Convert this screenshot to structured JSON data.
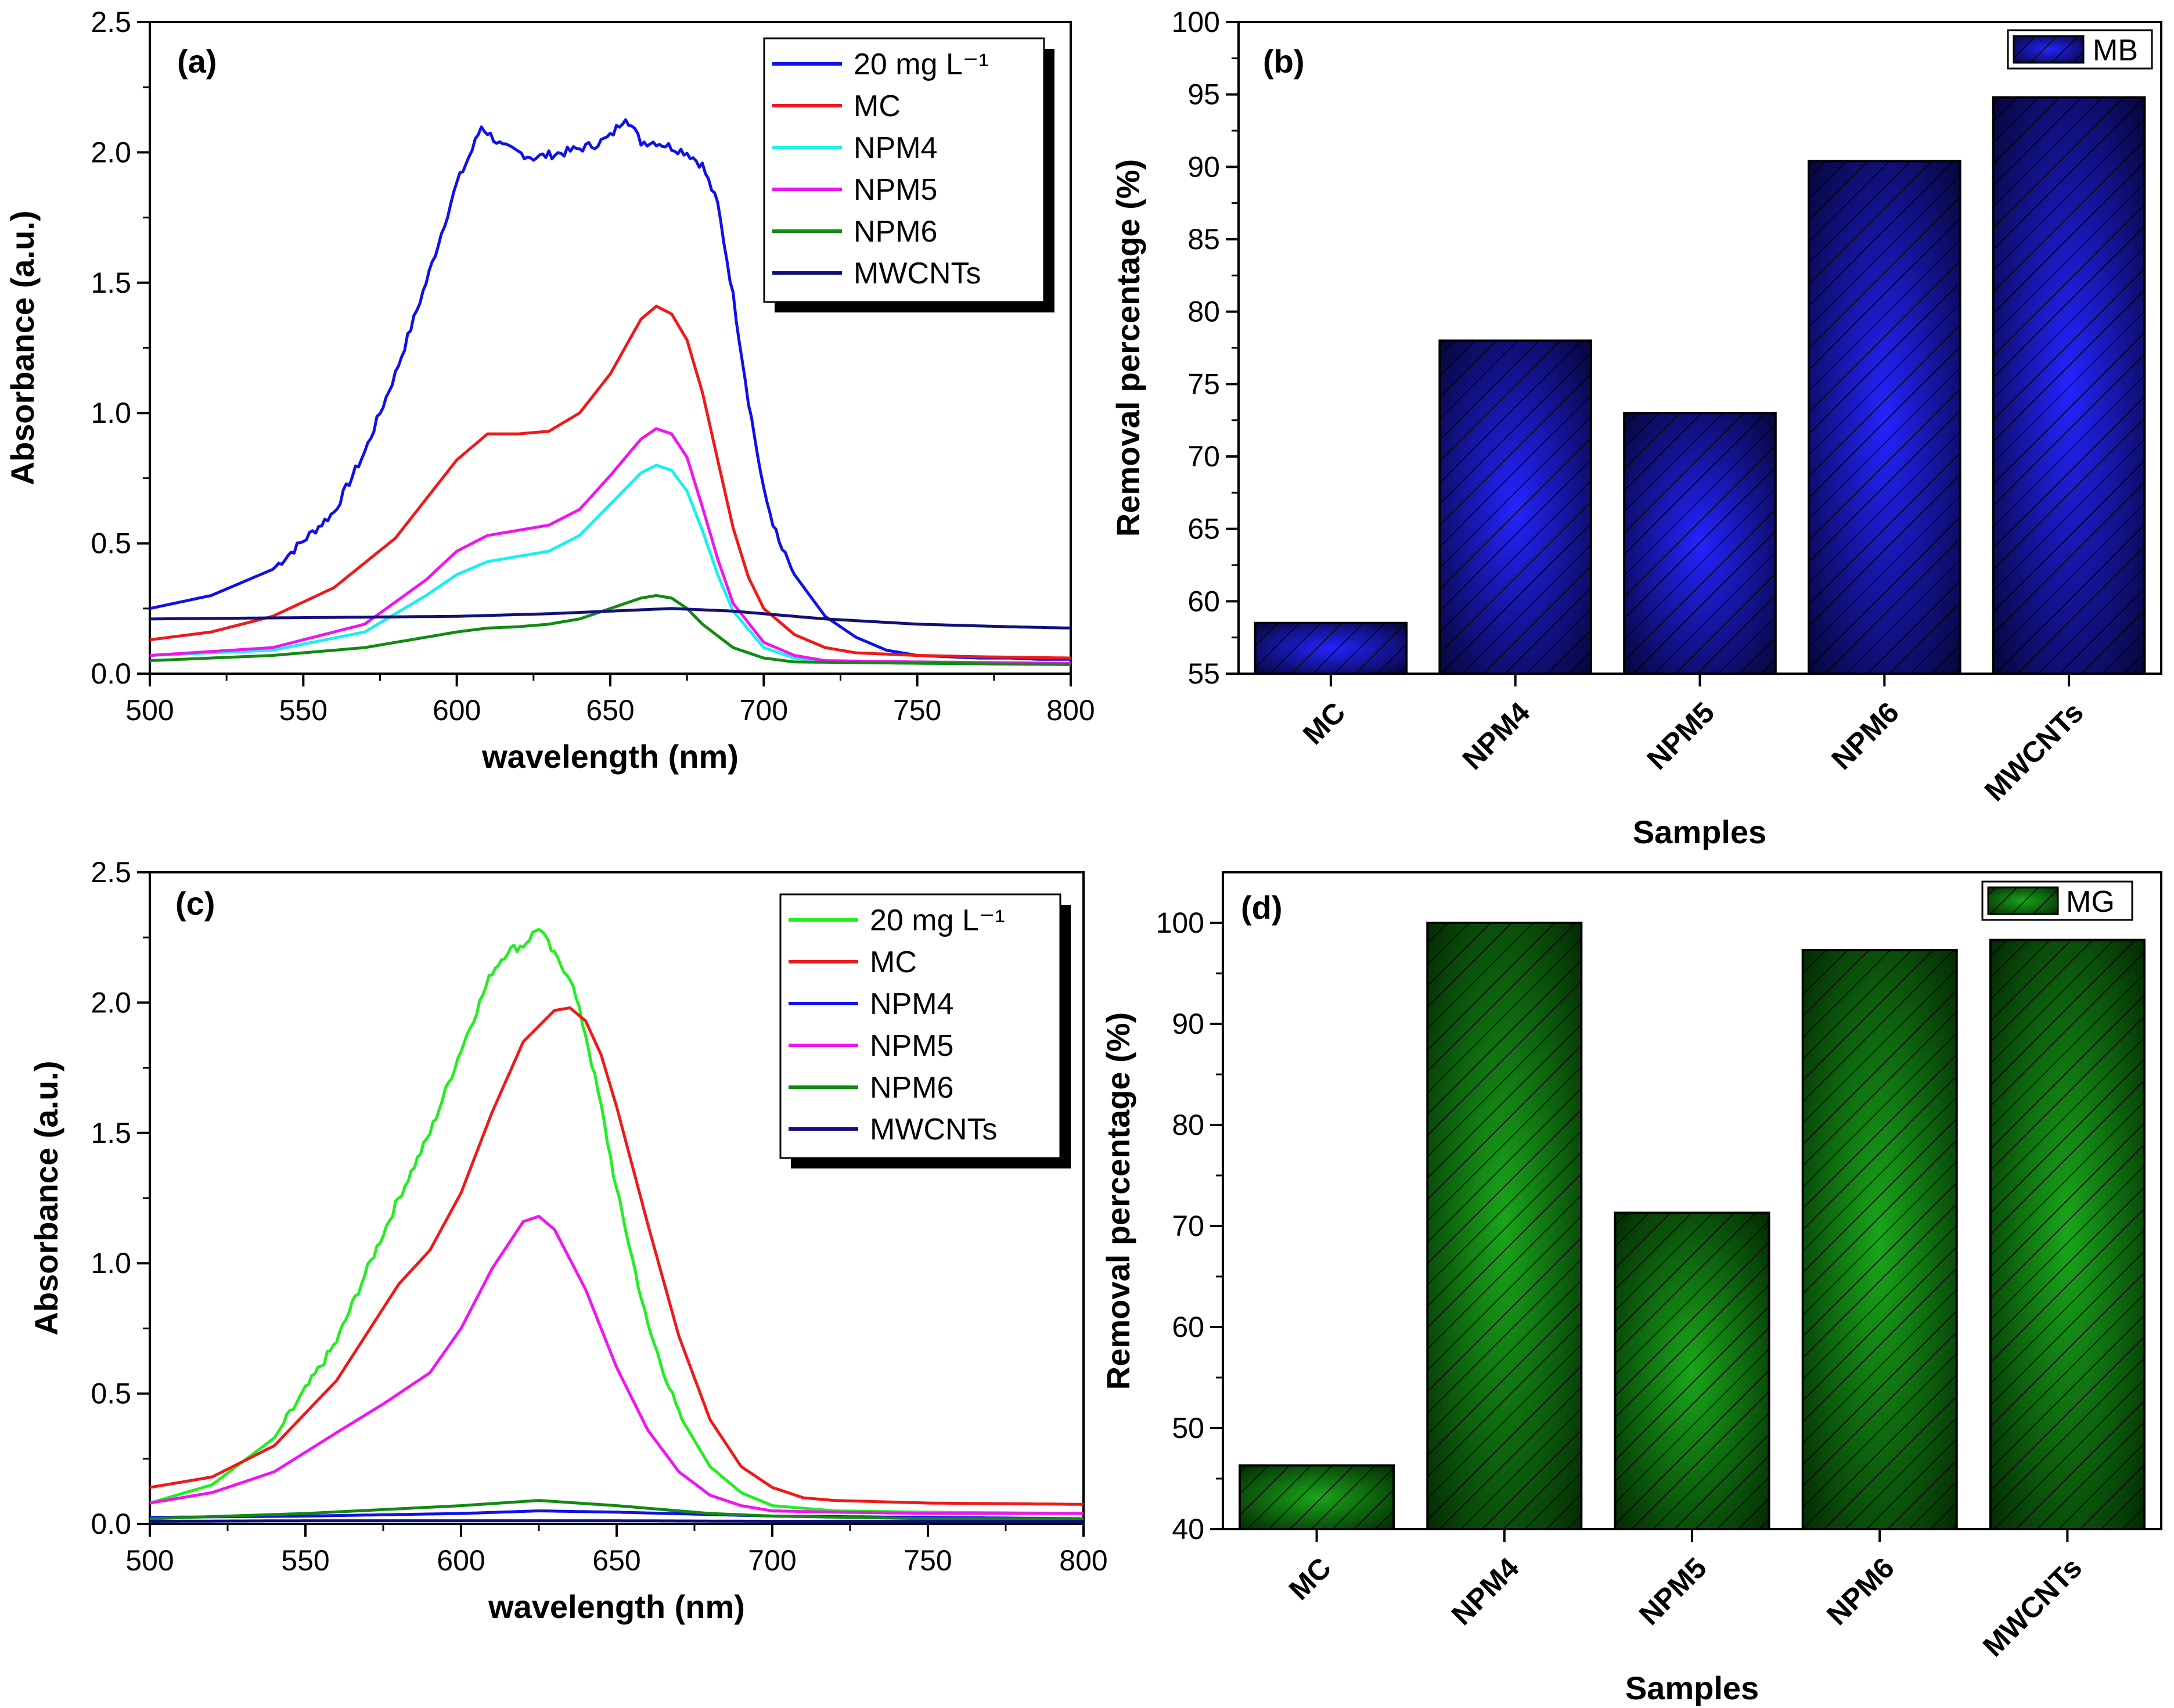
{
  "colors": {
    "blue": "#1010e8",
    "red": "#ee1a1a",
    "cyan": "#18f0f0",
    "magenta": "#f014f0",
    "green_dark": "#128a12",
    "navy": "#10107a",
    "lime": "#22ee22",
    "bar_blue_center": "#2424ff",
    "bar_blue_edge": "#06063a",
    "bar_green_center": "#1aa61a",
    "bar_green_edge": "#032b03"
  },
  "chart_data": [
    {
      "panel_label": "(a)",
      "type": "line",
      "xlabel": "wavelength (nm)",
      "ylabel": "Absorbance (a.u.)",
      "xlim": [
        500,
        800
      ],
      "ylim": [
        0,
        2.5
      ],
      "xticks": [
        "500",
        "550",
        "600",
        "650",
        "700",
        "750",
        "800"
      ],
      "yticks": [
        "0.0",
        "0.5",
        "1.0",
        "1.5",
        "2.0",
        "2.5"
      ],
      "legend_position": "top-right",
      "series": [
        {
          "name": "20 mg L⁻¹",
          "color": "blue",
          "x": [
            500,
            520,
            540,
            560,
            570,
            580,
            590,
            600,
            605,
            608,
            615,
            625,
            635,
            645,
            650,
            655,
            660,
            665,
            670,
            675,
            680,
            685,
            690,
            695,
            700,
            705,
            710,
            720,
            730,
            740,
            750,
            760,
            770,
            780,
            790,
            800
          ],
          "y": [
            0.25,
            0.3,
            0.4,
            0.62,
            0.85,
            1.15,
            1.5,
            1.88,
            2.01,
            2.1,
            2.02,
            1.98,
            2.0,
            2.03,
            2.06,
            2.14,
            2.04,
            2.04,
            2.02,
            2.0,
            1.95,
            1.8,
            1.45,
            1.05,
            0.7,
            0.5,
            0.38,
            0.22,
            0.14,
            0.09,
            0.07,
            0.065,
            0.06,
            0.06,
            0.055,
            0.055
          ]
        },
        {
          "name": "MC",
          "color": "red",
          "x": [
            500,
            520,
            540,
            560,
            580,
            600,
            610,
            620,
            630,
            640,
            650,
            660,
            665,
            670,
            675,
            680,
            685,
            690,
            695,
            700,
            710,
            720,
            730,
            750,
            770,
            800
          ],
          "y": [
            0.13,
            0.16,
            0.22,
            0.33,
            0.52,
            0.82,
            0.92,
            0.92,
            0.93,
            1.0,
            1.15,
            1.36,
            1.41,
            1.38,
            1.28,
            1.08,
            0.82,
            0.56,
            0.37,
            0.25,
            0.15,
            0.1,
            0.08,
            0.07,
            0.065,
            0.06
          ]
        },
        {
          "name": "NPM4",
          "color": "cyan",
          "x": [
            500,
            540,
            570,
            590,
            600,
            610,
            620,
            630,
            640,
            650,
            660,
            665,
            670,
            675,
            680,
            685,
            690,
            700,
            710,
            720,
            750,
            800
          ],
          "y": [
            0.07,
            0.09,
            0.16,
            0.3,
            0.38,
            0.43,
            0.45,
            0.47,
            0.53,
            0.65,
            0.77,
            0.8,
            0.78,
            0.7,
            0.55,
            0.38,
            0.24,
            0.1,
            0.06,
            0.045,
            0.04,
            0.035
          ]
        },
        {
          "name": "NPM5",
          "color": "magenta",
          "x": [
            500,
            540,
            570,
            590,
            600,
            610,
            620,
            630,
            640,
            650,
            660,
            665,
            670,
            675,
            680,
            685,
            690,
            700,
            710,
            720,
            750,
            800
          ],
          "y": [
            0.07,
            0.1,
            0.19,
            0.36,
            0.47,
            0.53,
            0.55,
            0.57,
            0.63,
            0.76,
            0.9,
            0.94,
            0.92,
            0.83,
            0.64,
            0.44,
            0.27,
            0.12,
            0.07,
            0.05,
            0.045,
            0.04
          ]
        },
        {
          "name": "NPM6",
          "color": "green_dark",
          "x": [
            500,
            540,
            570,
            590,
            600,
            610,
            620,
            630,
            640,
            650,
            660,
            665,
            670,
            675,
            680,
            690,
            700,
            710,
            750,
            800
          ],
          "y": [
            0.05,
            0.07,
            0.1,
            0.14,
            0.16,
            0.175,
            0.18,
            0.19,
            0.21,
            0.25,
            0.29,
            0.3,
            0.29,
            0.25,
            0.19,
            0.1,
            0.06,
            0.045,
            0.04,
            0.035
          ]
        },
        {
          "name": "MWCNTs",
          "color": "navy",
          "x": [
            500,
            550,
            600,
            630,
            650,
            670,
            690,
            720,
            750,
            780,
            800
          ],
          "y": [
            0.21,
            0.215,
            0.22,
            0.23,
            0.24,
            0.25,
            0.24,
            0.21,
            0.19,
            0.18,
            0.175
          ]
        }
      ]
    },
    {
      "panel_label": "(b)",
      "type": "bar",
      "xlabel": "Samples",
      "ylabel": "Removal percentage (%)",
      "ylim": [
        55,
        100
      ],
      "yticks": [
        "55",
        "60",
        "65",
        "70",
        "75",
        "80",
        "85",
        "90",
        "95",
        "100"
      ],
      "categories": [
        "MC",
        "NPM4",
        "NPM5",
        "NPM6",
        "MWCNTs"
      ],
      "series": [
        {
          "name": "MB",
          "values": [
            58.5,
            78,
            73,
            90.4,
            94.8
          ]
        }
      ],
      "legend_position": "top-right"
    },
    {
      "panel_label": "(c)",
      "type": "line",
      "xlabel": "wavelength (nm)",
      "ylabel": "Absorbance (a.u.)",
      "xlim": [
        500,
        800
      ],
      "ylim": [
        0,
        2.5
      ],
      "xticks": [
        "500",
        "550",
        "600",
        "650",
        "700",
        "750",
        "800"
      ],
      "yticks": [
        "0.0",
        "0.5",
        "1.0",
        "1.5",
        "2.0",
        "2.5"
      ],
      "legend_position": "top-right",
      "series": [
        {
          "name": "20 mg L⁻¹",
          "color": "lime",
          "x": [
            500,
            520,
            540,
            560,
            570,
            580,
            590,
            600,
            610,
            615,
            620,
            625,
            630,
            635,
            640,
            645,
            650,
            660,
            670,
            680,
            690,
            700,
            720,
            750,
            800
          ],
          "y": [
            0.08,
            0.15,
            0.33,
            0.7,
            0.98,
            1.25,
            1.5,
            1.82,
            2.12,
            2.2,
            2.22,
            2.29,
            2.18,
            2.1,
            1.88,
            1.6,
            1.28,
            0.76,
            0.42,
            0.22,
            0.12,
            0.07,
            0.05,
            0.045,
            0.04
          ]
        },
        {
          "name": "MC",
          "color": "red",
          "x": [
            500,
            520,
            540,
            560,
            580,
            590,
            600,
            610,
            620,
            630,
            635,
            640,
            645,
            650,
            660,
            670,
            680,
            690,
            700,
            710,
            720,
            750,
            800
          ],
          "y": [
            0.14,
            0.18,
            0.3,
            0.55,
            0.92,
            1.05,
            1.27,
            1.58,
            1.85,
            1.97,
            1.98,
            1.93,
            1.8,
            1.6,
            1.15,
            0.72,
            0.4,
            0.22,
            0.14,
            0.1,
            0.09,
            0.08,
            0.075
          ]
        },
        {
          "name": "NPM4",
          "color": "blue",
          "x": [
            500,
            550,
            600,
            625,
            650,
            700,
            750,
            800
          ],
          "y": [
            0.025,
            0.03,
            0.04,
            0.05,
            0.045,
            0.03,
            0.025,
            0.02
          ]
        },
        {
          "name": "NPM5",
          "color": "magenta",
          "x": [
            500,
            520,
            540,
            560,
            575,
            590,
            600,
            610,
            620,
            625,
            630,
            640,
            650,
            660,
            670,
            680,
            690,
            700,
            720,
            750,
            800
          ],
          "y": [
            0.08,
            0.12,
            0.2,
            0.35,
            0.46,
            0.58,
            0.75,
            0.98,
            1.16,
            1.18,
            1.13,
            0.9,
            0.6,
            0.36,
            0.2,
            0.11,
            0.07,
            0.05,
            0.045,
            0.04,
            0.04
          ]
        },
        {
          "name": "NPM6",
          "color": "green_dark",
          "x": [
            500,
            550,
            600,
            625,
            650,
            680,
            700,
            750,
            800
          ],
          "y": [
            0.02,
            0.04,
            0.07,
            0.09,
            0.07,
            0.04,
            0.03,
            0.02,
            0.02
          ]
        },
        {
          "name": "MWCNTs",
          "color": "navy",
          "x": [
            500,
            550,
            600,
            650,
            700,
            750,
            800
          ],
          "y": [
            0.01,
            0.012,
            0.012,
            0.012,
            0.01,
            0.01,
            0.01
          ]
        }
      ]
    },
    {
      "panel_label": "(d)",
      "type": "bar",
      "xlabel": "Samples",
      "ylabel": "Removal percentage (%)",
      "ylim": [
        40,
        105
      ],
      "yticks": [
        "40",
        "50",
        "60",
        "70",
        "80",
        "90",
        "100"
      ],
      "categories": [
        "MC",
        "NPM4",
        "NPM5",
        "NPM6",
        "MWCNTs"
      ],
      "series": [
        {
          "name": "MG",
          "values": [
            46.3,
            100,
            71.3,
            97.3,
            98.3
          ]
        }
      ],
      "legend_position": "top-right"
    }
  ]
}
